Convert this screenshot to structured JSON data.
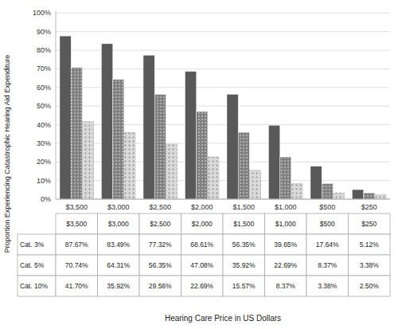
{
  "chart_data": {
    "type": "bar",
    "categories": [
      "$3,500",
      "$3,000",
      "$2,500",
      "$2,000",
      "$1,500",
      "$1,000",
      "$500",
      "$250"
    ],
    "series": [
      {
        "name": "Cat. 3%",
        "color": "#595959",
        "values": [
          87.67,
          83.49,
          77.32,
          68.61,
          56.35,
          39.65,
          17.64,
          5.12
        ],
        "value_labels": [
          "87.67%",
          "83.49%",
          "77.32%",
          "68.61%",
          "56.35%",
          "39.65%",
          "17.64%",
          "5.12%"
        ]
      },
      {
        "name": "Cat. 5%",
        "color": "#808080",
        "values": [
          70.74,
          64.31,
          56.35,
          47.08,
          35.92,
          22.69,
          8.37,
          3.38
        ],
        "value_labels": [
          "70.74%",
          "64.31%",
          "56.35%",
          "47.08%",
          "35.92%",
          "22.69%",
          "8.37%",
          "3.38%"
        ]
      },
      {
        "name": "Cat. 10%",
        "color": "#d9d9d9",
        "values": [
          41.7,
          35.92,
          29.56,
          22.69,
          15.57,
          8.37,
          3.38,
          2.5
        ],
        "value_labels": [
          "41.70%",
          "35.92%",
          "29.56%",
          "22.69%",
          "15.57%",
          "8.37%",
          "3.38%",
          "2.50%"
        ]
      }
    ],
    "xlabel": "Hearing Care Price in US Dollars",
    "ylabel": "Proportion Experiencing Catastrophic Hearing Aid Expenditure",
    "ylim": [
      0,
      101
    ],
    "yticks": [
      {
        "value": 0,
        "label": "0%"
      },
      {
        "value": 10,
        "label": "10%"
      },
      {
        "value": 20,
        "label": "20%"
      },
      {
        "value": 30,
        "label": "30%"
      },
      {
        "value": 40,
        "label": "40%"
      },
      {
        "value": 50,
        "label": "50%"
      },
      {
        "value": 60,
        "label": "60%"
      },
      {
        "value": 70,
        "label": "70%"
      },
      {
        "value": 80,
        "label": "80%"
      },
      {
        "value": 90,
        "label": "90%"
      },
      {
        "value": 100,
        "label": "100%"
      }
    ],
    "grid": true
  }
}
